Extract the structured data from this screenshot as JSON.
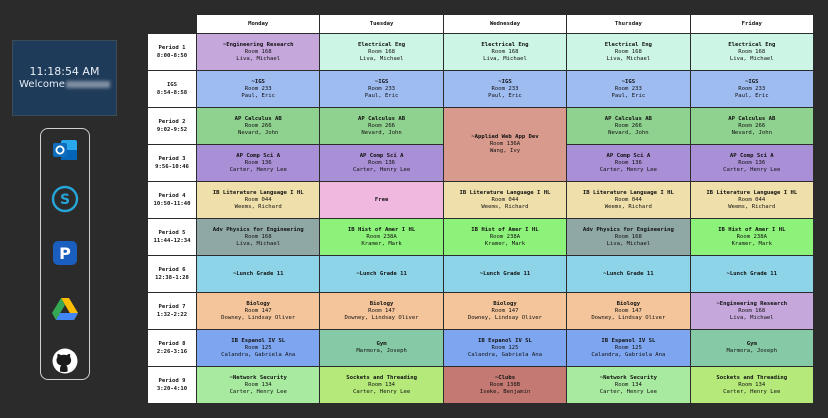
{
  "clock": {
    "time": "11:18:54 AM",
    "welcome": "Welcome"
  },
  "dock": [
    {
      "name": "outlook-icon",
      "color": "#0f6cbd"
    },
    {
      "name": "schoology-icon",
      "color": "#27a4d8"
    },
    {
      "name": "powerschool-icon",
      "color": "#1a5fbf"
    },
    {
      "name": "google-drive-icon",
      "color": "#34a853"
    },
    {
      "name": "github-icon",
      "color": "#ffffff"
    }
  ],
  "days": [
    "Monday",
    "Tuesday",
    "Wednesday",
    "Thursday",
    "Friday"
  ],
  "periods": [
    {
      "label": "Period 1",
      "time": "8:00-8:50"
    },
    {
      "label": "IGS",
      "time": "8:54-8:58"
    },
    {
      "label": "Period 2",
      "time": "9:02-9:52"
    },
    {
      "label": "Period 3",
      "time": "9:56-10:46"
    },
    {
      "label": "Period 4",
      "time": "10:50-11:40"
    },
    {
      "label": "Period 5",
      "time": "11:44-12:34"
    },
    {
      "label": "Period 6",
      "time": "12:38-1:28"
    },
    {
      "label": "Period 7",
      "time": "1:32-2:22"
    },
    {
      "label": "Period 8",
      "time": "2:26-3:16"
    },
    {
      "label": "Period 9",
      "time": "3:20-4:10"
    }
  ],
  "rows": [
    [
      {
        "title": "~Engineering Research",
        "room": "Room 168",
        "teacher": "Liva, Michael",
        "color": "#c5a7dc"
      },
      {
        "title": "Electrical Eng",
        "room": "Room 168",
        "teacher": "Liva, Michael",
        "color": "#ccf5e6"
      },
      {
        "title": "Electrical Eng",
        "room": "Room 168",
        "teacher": "Liva, Michael",
        "color": "#ccf5e6"
      },
      {
        "title": "Electrical Eng",
        "room": "Room 168",
        "teacher": "Liva, Michael",
        "color": "#ccf5e6"
      },
      {
        "title": "Electrical Eng",
        "room": "Room 168",
        "teacher": "Liva, Michael",
        "color": "#ccf5e6"
      }
    ],
    [
      {
        "title": "~IGS",
        "room": "Room 233",
        "teacher": "Paul, Eric",
        "color": "#9fbcf0"
      },
      {
        "title": "~IGS",
        "room": "Room 233",
        "teacher": "Paul, Eric",
        "color": "#9fbcf0"
      },
      {
        "title": "~IGS",
        "room": "Room 233",
        "teacher": "Paul, Eric",
        "color": "#9fbcf0"
      },
      {
        "title": "~IGS",
        "room": "Room 233",
        "teacher": "Paul, Eric",
        "color": "#9fbcf0"
      },
      {
        "title": "~IGS",
        "room": "Room 233",
        "teacher": "Paul, Eric",
        "color": "#9fbcf0"
      }
    ],
    [
      {
        "title": "AP Calculus AB",
        "room": "Room 266",
        "teacher": "Nevard, John",
        "color": "#8fd18f"
      },
      {
        "title": "AP Calculus AB",
        "room": "Room 266",
        "teacher": "Nevard, John",
        "color": "#8fd18f"
      },
      {
        "title": "~Applied Web App Dev",
        "room": "Room 136A",
        "teacher": "Wang, Ivy",
        "color": "#d89a8c",
        "rowspan": 2
      },
      {
        "title": "AP Calculus AB",
        "room": "Room 266",
        "teacher": "Nevard, John",
        "color": "#8fd18f"
      },
      {
        "title": "AP Calculus AB",
        "room": "Room 266",
        "teacher": "Nevard, John",
        "color": "#8fd18f"
      }
    ],
    [
      {
        "title": "AP Comp Sci A",
        "room": "Room 136",
        "teacher": "Carter, Henry Lee",
        "color": "#a98fd6"
      },
      {
        "title": "AP Comp Sci A",
        "room": "Room 136",
        "teacher": "Carter, Henry Lee",
        "color": "#a98fd6"
      },
      null,
      {
        "title": "AP Comp Sci A",
        "room": "Room 136",
        "teacher": "Carter, Henry Lee",
        "color": "#a98fd6"
      },
      {
        "title": "AP Comp Sci A",
        "room": "Room 136",
        "teacher": "Carter, Henry Lee",
        "color": "#a98fd6"
      }
    ],
    [
      {
        "title": "IB Literature Language I HL",
        "room": "Room 044",
        "teacher": "Weems, Richard",
        "color": "#efdfaa"
      },
      {
        "title": "Free",
        "room": "",
        "teacher": "",
        "color": "#f0b8df"
      },
      {
        "title": "IB Literature Language I HL",
        "room": "Room 044",
        "teacher": "Weems, Richard",
        "color": "#efdfaa"
      },
      {
        "title": "IB Literature Language I HL",
        "room": "Room 044",
        "teacher": "Weems, Richard",
        "color": "#efdfaa"
      },
      {
        "title": "IB Literature Language I HL",
        "room": "Room 044",
        "teacher": "Weems, Richard",
        "color": "#efdfaa"
      }
    ],
    [
      {
        "title": "Adv Physics for Engineering",
        "room": "Room 168",
        "teacher": "Liva, Michael",
        "color": "#8fa8a6"
      },
      {
        "title": "IB Hist of Amer I HL",
        "room": "Room 238A",
        "teacher": "Kramer, Mark",
        "color": "#8df27a"
      },
      {
        "title": "IB Hist of Amer I HL",
        "room": "Room 238A",
        "teacher": "Kramer, Mark",
        "color": "#8df27a"
      },
      {
        "title": "Adv Physics for Engineering",
        "room": "Room 168",
        "teacher": "Liva, Michael",
        "color": "#8fa8a6"
      },
      {
        "title": "IB Hist of Amer I HL",
        "room": "Room 238A",
        "teacher": "Kramer, Mark",
        "color": "#8df27a"
      }
    ],
    [
      {
        "title": "~Lunch Grade 11",
        "room": "",
        "teacher": "",
        "color": "#8dd4e8"
      },
      {
        "title": "~Lunch Grade 11",
        "room": "",
        "teacher": "",
        "color": "#8dd4e8"
      },
      {
        "title": "~Lunch Grade 11",
        "room": "",
        "teacher": "",
        "color": "#8dd4e8"
      },
      {
        "title": "~Lunch Grade 11",
        "room": "",
        "teacher": "",
        "color": "#8dd4e8"
      },
      {
        "title": "~Lunch Grade 11",
        "room": "",
        "teacher": "",
        "color": "#8dd4e8"
      }
    ],
    [
      {
        "title": "Biology",
        "room": "Room 147",
        "teacher": "Downey, Lindsay Oliver",
        "color": "#f4c59a"
      },
      {
        "title": "Biology",
        "room": "Room 147",
        "teacher": "Downey, Lindsay Oliver",
        "color": "#f4c59a"
      },
      {
        "title": "Biology",
        "room": "Room 147",
        "teacher": "Downey, Lindsay Oliver",
        "color": "#f4c59a"
      },
      {
        "title": "Biology",
        "room": "Room 147",
        "teacher": "Downey, Lindsay Oliver",
        "color": "#f4c59a"
      },
      {
        "title": "~Engineering Research",
        "room": "Room 168",
        "teacher": "Liva, Michael",
        "color": "#c5a7dc"
      }
    ],
    [
      {
        "title": "IB Espanol IV SL",
        "room": "Room 125",
        "teacher": "Calandra, Gabriela Ana",
        "color": "#7ea6f0"
      },
      {
        "title": "Gym",
        "room": "",
        "teacher": "Marmora, Joseph",
        "color": "#86c9a6"
      },
      {
        "title": "IB Espanol IV SL",
        "room": "Room 125",
        "teacher": "Calandra, Gabriela Ana",
        "color": "#7ea6f0"
      },
      {
        "title": "IB Espanol IV SL",
        "room": "Room 125",
        "teacher": "Calandra, Gabriela Ana",
        "color": "#7ea6f0"
      },
      {
        "title": "Gym",
        "room": "",
        "teacher": "Marmora, Joseph",
        "color": "#86c9a6"
      }
    ],
    [
      {
        "title": "~Network Security",
        "room": "Room 134",
        "teacher": "Carter, Henry Lee",
        "color": "#a8eaa0"
      },
      {
        "title": "Sockets and Threading",
        "room": "Room 134",
        "teacher": "Carter, Henry Lee",
        "color": "#b5ea7a"
      },
      {
        "title": "~Clubs",
        "room": "Room 138B",
        "teacher": "Iseke, Benjamin",
        "color": "#c47a72"
      },
      {
        "title": "~Network Security",
        "room": "Room 134",
        "teacher": "Carter, Henry Lee",
        "color": "#a8eaa0"
      },
      {
        "title": "Sockets and Threading",
        "room": "Room 134",
        "teacher": "Carter, Henry Lee",
        "color": "#b5ea7a"
      }
    ]
  ]
}
